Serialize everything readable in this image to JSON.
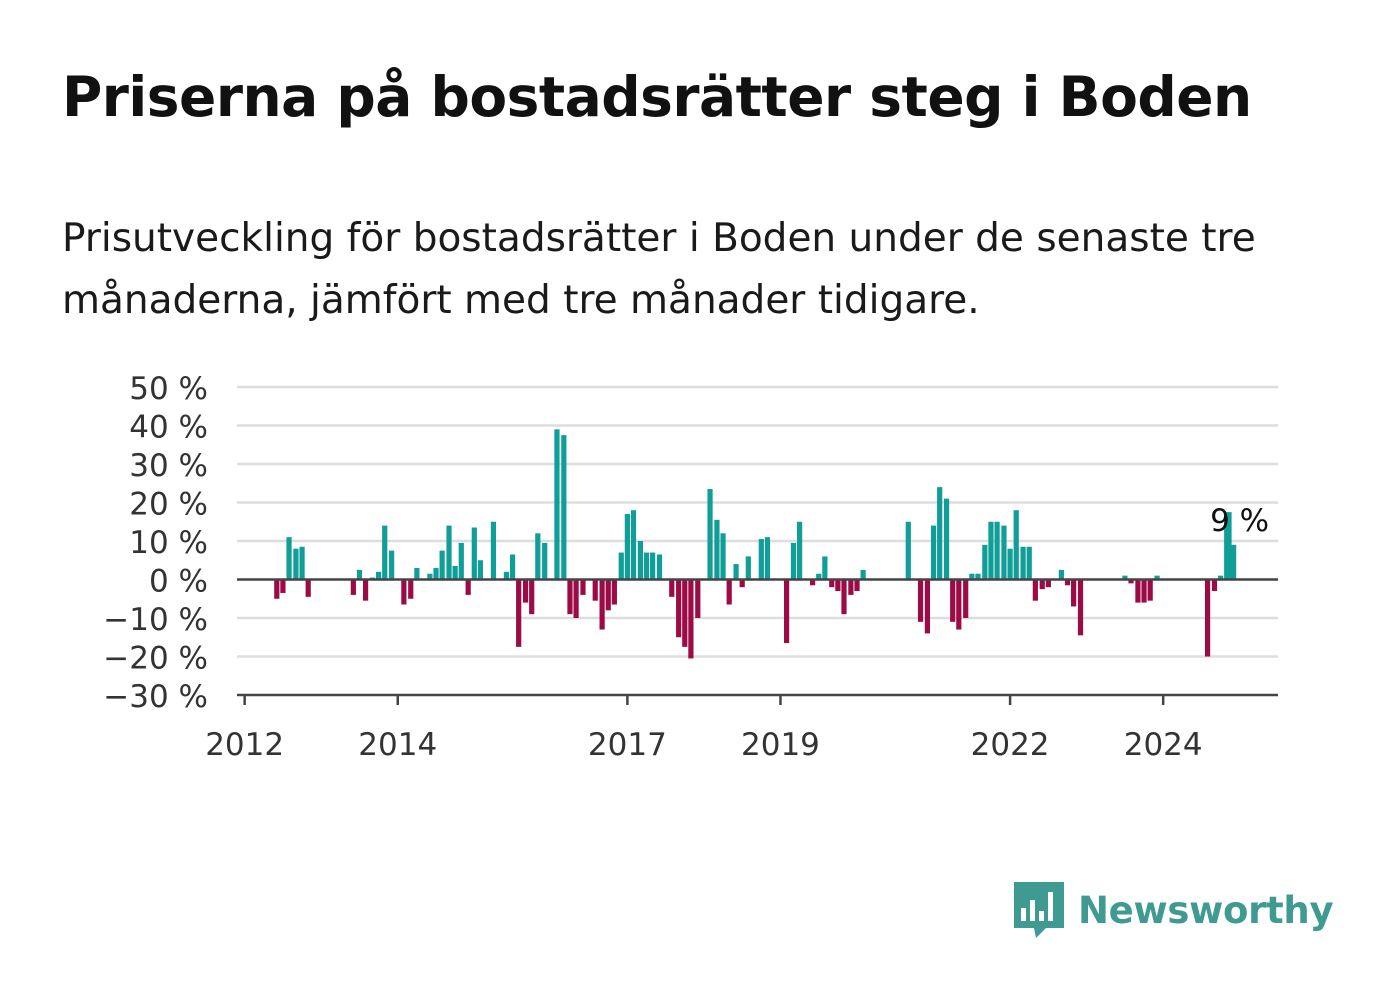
{
  "title": "Priserna på bostadsrätter steg i Boden",
  "subtitle": "Prisutveckling för bostadsrätter i Boden under de senaste tre månaderna, jämfört med tre månader tidigare.",
  "colors": {
    "positive": "#0f9e98",
    "negative": "#9c0b45",
    "grid": "#dddddd",
    "axis": "#444444"
  },
  "brand": {
    "name": "Newsworthy",
    "icon": "bar-chart-speech-bubble-icon",
    "color": "#3f9a92"
  },
  "chart_data": {
    "type": "bar",
    "x_unit": "year",
    "ylim": [
      -30,
      50
    ],
    "xlim": [
      2011.9,
      2025.5
    ],
    "yticks": [
      {
        "value": 50,
        "label": "50 %"
      },
      {
        "value": 40,
        "label": "40 %"
      },
      {
        "value": 30,
        "label": "30 %"
      },
      {
        "value": 20,
        "label": "20 %"
      },
      {
        "value": 10,
        "label": "10 %"
      },
      {
        "value": 0,
        "label": "0 %"
      },
      {
        "value": -10,
        "label": "−10 %"
      },
      {
        "value": -20,
        "label": "−20 %"
      },
      {
        "value": -30,
        "label": "−30 %"
      }
    ],
    "xticks": [
      {
        "value": 2012,
        "label": "2012"
      },
      {
        "value": 2014,
        "label": "2014"
      },
      {
        "value": 2017,
        "label": "2017"
      },
      {
        "value": 2019,
        "label": "2019"
      },
      {
        "value": 2022,
        "label": "2022"
      },
      {
        "value": 2024,
        "label": "2024"
      }
    ],
    "grid": true,
    "annotation": {
      "text": "9 %",
      "x": 2024.92,
      "y": 9
    },
    "points": [
      {
        "x": 2012.42,
        "y": -5
      },
      {
        "x": 2012.5,
        "y": -3.5
      },
      {
        "x": 2012.58,
        "y": 11
      },
      {
        "x": 2012.67,
        "y": 8
      },
      {
        "x": 2012.75,
        "y": 8.5
      },
      {
        "x": 2012.83,
        "y": -4.5
      },
      {
        "x": 2013.42,
        "y": -4
      },
      {
        "x": 2013.5,
        "y": 2.5
      },
      {
        "x": 2013.58,
        "y": -5.5
      },
      {
        "x": 2013.67,
        "y": 0.5
      },
      {
        "x": 2013.75,
        "y": 2
      },
      {
        "x": 2013.83,
        "y": 14
      },
      {
        "x": 2013.92,
        "y": 7.5
      },
      {
        "x": 2014.08,
        "y": -6.5
      },
      {
        "x": 2014.17,
        "y": -5
      },
      {
        "x": 2014.25,
        "y": 3
      },
      {
        "x": 2014.42,
        "y": 1.5
      },
      {
        "x": 2014.5,
        "y": 3
      },
      {
        "x": 2014.58,
        "y": 7.5
      },
      {
        "x": 2014.67,
        "y": 14
      },
      {
        "x": 2014.75,
        "y": 3.5
      },
      {
        "x": 2014.83,
        "y": 9.5
      },
      {
        "x": 2014.92,
        "y": -4
      },
      {
        "x": 2015.0,
        "y": 13.5
      },
      {
        "x": 2015.08,
        "y": 5
      },
      {
        "x": 2015.25,
        "y": 15
      },
      {
        "x": 2015.42,
        "y": 2
      },
      {
        "x": 2015.5,
        "y": 6.5
      },
      {
        "x": 2015.58,
        "y": -17.5
      },
      {
        "x": 2015.67,
        "y": -6
      },
      {
        "x": 2015.75,
        "y": -9
      },
      {
        "x": 2015.83,
        "y": 12
      },
      {
        "x": 2015.92,
        "y": 9.5
      },
      {
        "x": 2016.08,
        "y": 39
      },
      {
        "x": 2016.17,
        "y": 37.5
      },
      {
        "x": 2016.25,
        "y": -9
      },
      {
        "x": 2016.33,
        "y": -10
      },
      {
        "x": 2016.42,
        "y": -4
      },
      {
        "x": 2016.58,
        "y": -5.5
      },
      {
        "x": 2016.67,
        "y": -13
      },
      {
        "x": 2016.75,
        "y": -8
      },
      {
        "x": 2016.83,
        "y": -6.5
      },
      {
        "x": 2016.92,
        "y": 7
      },
      {
        "x": 2017.0,
        "y": 17
      },
      {
        "x": 2017.08,
        "y": 18
      },
      {
        "x": 2017.17,
        "y": 10
      },
      {
        "x": 2017.25,
        "y": 7
      },
      {
        "x": 2017.33,
        "y": 7
      },
      {
        "x": 2017.42,
        "y": 6.5
      },
      {
        "x": 2017.58,
        "y": -4.5
      },
      {
        "x": 2017.67,
        "y": -15
      },
      {
        "x": 2017.75,
        "y": -17.5
      },
      {
        "x": 2017.83,
        "y": -20.5
      },
      {
        "x": 2017.92,
        "y": -10
      },
      {
        "x": 2018.08,
        "y": 23.5
      },
      {
        "x": 2018.17,
        "y": 15.5
      },
      {
        "x": 2018.25,
        "y": 12
      },
      {
        "x": 2018.33,
        "y": -6.5
      },
      {
        "x": 2018.42,
        "y": 4
      },
      {
        "x": 2018.5,
        "y": -2
      },
      {
        "x": 2018.58,
        "y": 6
      },
      {
        "x": 2018.75,
        "y": 10.5
      },
      {
        "x": 2018.83,
        "y": 11
      },
      {
        "x": 2019.08,
        "y": -16.5
      },
      {
        "x": 2019.17,
        "y": 9.5
      },
      {
        "x": 2019.25,
        "y": 15
      },
      {
        "x": 2019.42,
        "y": -1.5
      },
      {
        "x": 2019.5,
        "y": 1.5
      },
      {
        "x": 2019.58,
        "y": 6
      },
      {
        "x": 2019.67,
        "y": -2
      },
      {
        "x": 2019.75,
        "y": -3
      },
      {
        "x": 2019.83,
        "y": -9
      },
      {
        "x": 2019.92,
        "y": -4
      },
      {
        "x": 2020.0,
        "y": -3
      },
      {
        "x": 2020.08,
        "y": 2.5
      },
      {
        "x": 2020.67,
        "y": 15
      },
      {
        "x": 2020.83,
        "y": -11
      },
      {
        "x": 2020.92,
        "y": -14
      },
      {
        "x": 2021.0,
        "y": 14
      },
      {
        "x": 2021.08,
        "y": 24
      },
      {
        "x": 2021.17,
        "y": 21
      },
      {
        "x": 2021.25,
        "y": -11
      },
      {
        "x": 2021.33,
        "y": -13
      },
      {
        "x": 2021.42,
        "y": -10
      },
      {
        "x": 2021.5,
        "y": 1.5
      },
      {
        "x": 2021.58,
        "y": 1.5
      },
      {
        "x": 2021.67,
        "y": 9
      },
      {
        "x": 2021.75,
        "y": 15
      },
      {
        "x": 2021.83,
        "y": 15
      },
      {
        "x": 2021.92,
        "y": 14
      },
      {
        "x": 2022.0,
        "y": 8
      },
      {
        "x": 2022.08,
        "y": 18
      },
      {
        "x": 2022.17,
        "y": 8.5
      },
      {
        "x": 2022.25,
        "y": 8.5
      },
      {
        "x": 2022.33,
        "y": -5.5
      },
      {
        "x": 2022.42,
        "y": -2.5
      },
      {
        "x": 2022.5,
        "y": -2
      },
      {
        "x": 2022.67,
        "y": 2.5
      },
      {
        "x": 2022.75,
        "y": -1.5
      },
      {
        "x": 2022.83,
        "y": -7
      },
      {
        "x": 2022.92,
        "y": -14.5
      },
      {
        "x": 2023.5,
        "y": 1
      },
      {
        "x": 2023.58,
        "y": -1
      },
      {
        "x": 2023.67,
        "y": -6
      },
      {
        "x": 2023.75,
        "y": -6
      },
      {
        "x": 2023.83,
        "y": -5.5
      },
      {
        "x": 2023.92,
        "y": 1
      },
      {
        "x": 2024.58,
        "y": -20
      },
      {
        "x": 2024.67,
        "y": -3
      },
      {
        "x": 2024.75,
        "y": 1
      },
      {
        "x": 2024.83,
        "y": 16
      },
      {
        "x": 2024.86,
        "y": 17.5
      },
      {
        "x": 2024.92,
        "y": 9
      }
    ]
  }
}
